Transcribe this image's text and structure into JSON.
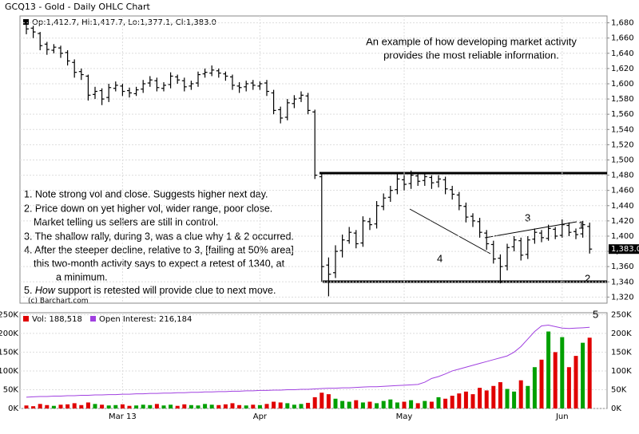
{
  "chart_data": {
    "type": "ohlc",
    "title": "GCQ13 - Gold - Daily OHLC Chart",
    "ohlc_legend": "Op:1,412.7, Hi:1,417.7, Lo:1,377.1, Cl:1,383.0",
    "headline": [
      "An example of how developing market activity",
      "provides the most reliable information."
    ],
    "note_lines": [
      "1. Note strong vol and close.  Suggests higher next day.",
      "2. Price down on yet higher vol, wider range, poor close.",
      "Market telling us sellers are still in control.",
      "3. The shallow rally, during 3, was a clue why 1 & 2 occurred.",
      "4. After the steeper decline, relative to 3, [failing at 50% area]",
      "this two-month activity says to expect a retest of 1340, at",
      "a minimum."
    ],
    "note5": {
      "prefix": "5. ",
      "emphasis": "How",
      "rest": " support is retested will provide clue to next move."
    },
    "labels": [
      "1",
      "2",
      "3",
      "4",
      "5"
    ],
    "copyright": "(c) Barchart.com",
    "last_price_label": "1,383.0",
    "categories": [
      null,
      null,
      null,
      null,
      null,
      null,
      null,
      null,
      null,
      null,
      null,
      null,
      null,
      null,
      "Mar 13",
      null,
      null,
      null,
      null,
      null,
      null,
      null,
      null,
      null,
      null,
      null,
      null,
      null,
      null,
      null,
      null,
      null,
      null,
      null,
      "Apr",
      null,
      null,
      null,
      null,
      null,
      null,
      null,
      null,
      null,
      null,
      null,
      null,
      null,
      null,
      null,
      null,
      null,
      null,
      null,
      null,
      "May",
      null,
      null,
      null,
      null,
      null,
      null,
      null,
      null,
      null,
      null,
      null,
      null,
      null,
      null,
      null,
      null,
      null,
      null,
      null,
      null,
      null,
      null,
      "Jun",
      null,
      null,
      null,
      null
    ],
    "open": [
      1678,
      1673,
      1666,
      1652,
      1644,
      1647,
      1641,
      1628,
      1616,
      1610,
      1586,
      1591,
      1582,
      1594,
      1597,
      1591,
      1587,
      1593,
      1601,
      1604,
      1594,
      1599,
      1609,
      1604,
      1597,
      1601,
      1613,
      1614,
      1617,
      1613,
      1609,
      1597,
      1596,
      1601,
      1597,
      1601,
      1588,
      1566,
      1556,
      1574,
      1581,
      1584,
      1563,
      1478,
      1362,
      1352,
      1381,
      1394,
      1404,
      1391,
      1419,
      1416,
      1439,
      1451,
      1461,
      1474,
      1469,
      1479,
      1473,
      1477,
      1471,
      1474,
      1461,
      1454,
      1439,
      1426,
      1419,
      1404,
      1389,
      1371,
      1361,
      1386,
      1394,
      1376,
      1396,
      1404,
      1397,
      1409,
      1401,
      1414,
      1406,
      1403,
      1412.7
    ],
    "high": [
      1682,
      1676,
      1668,
      1655,
      1652,
      1650,
      1644,
      1632,
      1620,
      1612,
      1596,
      1594,
      1600,
      1603,
      1600,
      1595,
      1596,
      1605,
      1610,
      1608,
      1602,
      1615,
      1612,
      1608,
      1604,
      1616,
      1620,
      1624,
      1620,
      1616,
      1612,
      1602,
      1604,
      1605,
      1603,
      1605,
      1592,
      1570,
      1580,
      1585,
      1590,
      1588,
      1566,
      1482,
      1372,
      1388,
      1402,
      1412,
      1408,
      1426,
      1424,
      1446,
      1456,
      1466,
      1482,
      1480,
      1486,
      1484,
      1484,
      1480,
      1480,
      1478,
      1466,
      1458,
      1444,
      1430,
      1424,
      1408,
      1394,
      1376,
      1390,
      1400,
      1398,
      1400,
      1410,
      1408,
      1415,
      1412,
      1422,
      1418,
      1410,
      1420,
      1417.7
    ],
    "low": [
      1665,
      1660,
      1644,
      1638,
      1640,
      1634,
      1624,
      1608,
      1605,
      1578,
      1580,
      1572,
      1576,
      1590,
      1584,
      1582,
      1584,
      1588,
      1596,
      1590,
      1590,
      1594,
      1600,
      1590,
      1592,
      1596,
      1608,
      1610,
      1608,
      1604,
      1592,
      1588,
      1590,
      1592,
      1592,
      1584,
      1560,
      1548,
      1552,
      1568,
      1576,
      1560,
      1475,
      1340,
      1321,
      1345,
      1372,
      1390,
      1384,
      1386,
      1408,
      1410,
      1434,
      1445,
      1455,
      1460,
      1462,
      1466,
      1466,
      1462,
      1464,
      1455,
      1448,
      1434,
      1418,
      1412,
      1398,
      1382,
      1364,
      1338,
      1355,
      1380,
      1368,
      1370,
      1390,
      1392,
      1394,
      1396,
      1398,
      1400,
      1396,
      1398,
      1377.1
    ],
    "close": [
      1672,
      1668,
      1650,
      1645,
      1648,
      1640,
      1630,
      1615,
      1612,
      1585,
      1590,
      1580,
      1595,
      1598,
      1590,
      1588,
      1592,
      1600,
      1605,
      1595,
      1598,
      1610,
      1605,
      1596,
      1600,
      1612,
      1615,
      1618,
      1614,
      1610,
      1598,
      1595,
      1600,
      1598,
      1600,
      1590,
      1565,
      1555,
      1575,
      1580,
      1585,
      1565,
      1480,
      1360,
      1350,
      1380,
      1395,
      1405,
      1390,
      1420,
      1415,
      1440,
      1450,
      1460,
      1475,
      1468,
      1480,
      1472,
      1478,
      1470,
      1475,
      1462,
      1455,
      1440,
      1425,
      1420,
      1405,
      1390,
      1370,
      1360,
      1385,
      1395,
      1375,
      1395,
      1405,
      1398,
      1410,
      1400,
      1415,
      1405,
      1402,
      1415,
      1383.0
    ],
    "bar_color": "#000000",
    "ylim": [
      1312,
      1689
    ],
    "yticks": [
      {
        "value": 1320,
        "label": "1,320"
      },
      {
        "value": 1340,
        "label": "1,340"
      },
      {
        "value": 1360,
        "label": "1,360"
      },
      {
        "value": 1380,
        "label": "1,380"
      },
      {
        "value": 1400,
        "label": "1,400"
      },
      {
        "value": 1420,
        "label": "1,420"
      },
      {
        "value": 1440,
        "label": "1,440"
      },
      {
        "value": 1460,
        "label": "1,460"
      },
      {
        "value": 1480,
        "label": "1,480"
      },
      {
        "value": 1500,
        "label": "1,500"
      },
      {
        "value": 1520,
        "label": "1,520"
      },
      {
        "value": 1540,
        "label": "1,540"
      },
      {
        "value": 1560,
        "label": "1,560"
      },
      {
        "value": 1580,
        "label": "1,580"
      },
      {
        "value": 1600,
        "label": "1,600"
      },
      {
        "value": 1620,
        "label": "1,620"
      },
      {
        "value": 1640,
        "label": "1,640"
      },
      {
        "value": 1660,
        "label": "1,660"
      },
      {
        "value": 1680,
        "label": "1,680"
      }
    ],
    "grid": true,
    "volume": {
      "name": "Vol: 188,518",
      "up_color": "#00a000",
      "down_color": "#e00000",
      "values": [
        8000,
        6000,
        12000,
        9000,
        7000,
        10000,
        11000,
        14000,
        9000,
        16000,
        12000,
        10000,
        8000,
        9000,
        11000,
        7000,
        8000,
        10000,
        9000,
        12000,
        8000,
        10000,
        7000,
        11000,
        9000,
        8000,
        12000,
        10000,
        9000,
        11000,
        14000,
        9000,
        8000,
        10000,
        9000,
        12000,
        18000,
        16000,
        14000,
        10000,
        12000,
        15000,
        30000,
        42000,
        38000,
        26000,
        20000,
        18000,
        22000,
        16000,
        18000,
        14000,
        20000,
        24000,
        16000,
        18000,
        22000,
        14000,
        20000,
        18000,
        30000,
        26000,
        34000,
        40000,
        45000,
        38000,
        55000,
        48000,
        60000,
        70000,
        52000,
        45000,
        75000,
        60000,
        110000,
        130000,
        205000,
        150000,
        190000,
        110000,
        140000,
        175000,
        188518
      ]
    },
    "open_interest": {
      "name": "Open Interest: 216,184",
      "color": "#a040e0",
      "values": [
        30000,
        31000,
        32000,
        32000,
        33000,
        33000,
        34000,
        34000,
        35000,
        35000,
        36000,
        36000,
        37000,
        37000,
        38000,
        38000,
        39000,
        39000,
        40000,
        40000,
        41000,
        41000,
        42000,
        42000,
        43000,
        43000,
        44000,
        44000,
        45000,
        45000,
        46000,
        46000,
        47000,
        47000,
        48000,
        48000,
        49000,
        49000,
        50000,
        50000,
        51000,
        51000,
        52000,
        53000,
        54000,
        54000,
        55000,
        55000,
        56000,
        57000,
        58000,
        58000,
        59000,
        60000,
        61000,
        62000,
        63000,
        64000,
        70000,
        80000,
        85000,
        92000,
        100000,
        105000,
        110000,
        115000,
        120000,
        125000,
        130000,
        135000,
        140000,
        150000,
        165000,
        185000,
        205000,
        220000,
        222000,
        218000,
        214000,
        213000,
        214000,
        215000,
        216184
      ]
    },
    "vol_ylim": [
      0,
      255000
    ],
    "vol_yticks": [
      {
        "value": 0,
        "label": "0K"
      },
      {
        "value": 50000,
        "label": "50K"
      },
      {
        "value": 100000,
        "label": "100K"
      },
      {
        "value": 150000,
        "label": "150K"
      },
      {
        "value": 200000,
        "label": "200K"
      },
      {
        "value": 250000,
        "label": "250K"
      }
    ]
  }
}
